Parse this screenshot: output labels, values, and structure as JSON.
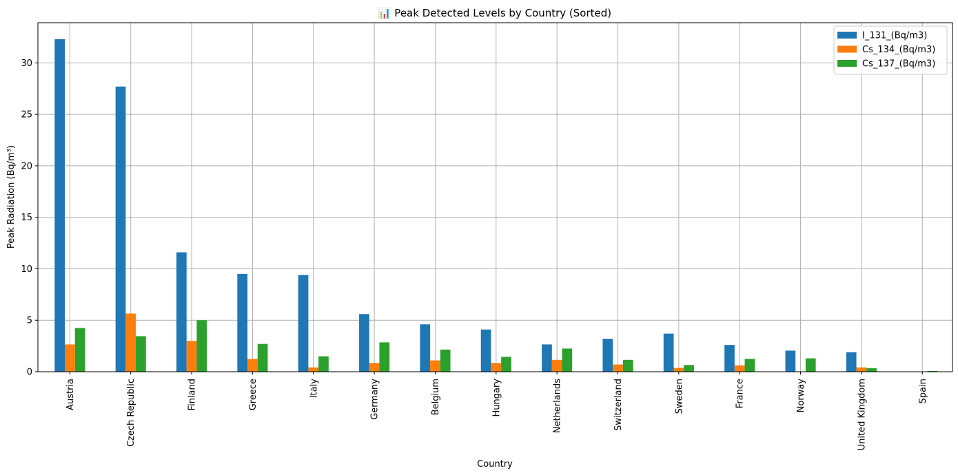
{
  "chart_data": {
    "type": "bar",
    "title": "📊 Peak Detected Levels by Country (Sorted)",
    "xlabel": "Country",
    "ylabel": "Peak Radiation (Bq/m³)",
    "ylim": [
      0,
      33.9
    ],
    "yticks": [
      0,
      5,
      10,
      15,
      20,
      25,
      30
    ],
    "grid": true,
    "legend_position": "top-right",
    "categories": [
      "Austria",
      "Czech Republic",
      "Finland",
      "Greece",
      "Italy",
      "Germany",
      "Belgium",
      "Hungary",
      "Netherlands",
      "Switzerland",
      "Sweden",
      "France",
      "Norway",
      "United Kingdom",
      "Spain"
    ],
    "series": [
      {
        "name": "I_131_(Bq/m3)",
        "color": "#1f77b4",
        "values": [
          32.3,
          27.7,
          11.6,
          9.5,
          9.4,
          5.6,
          4.6,
          4.1,
          2.65,
          3.2,
          3.7,
          2.6,
          2.05,
          1.9,
          0.02
        ]
      },
      {
        "name": "Cs_134_(Bq/m3)",
        "color": "#ff7f0e",
        "values": [
          2.65,
          5.65,
          3.0,
          1.25,
          0.42,
          0.85,
          1.1,
          0.85,
          1.15,
          0.7,
          0.38,
          0.62,
          0.0,
          0.42,
          0.0
        ]
      },
      {
        "name": "Cs_137_(Bq/m3)",
        "color": "#2ca02c",
        "values": [
          4.25,
          3.45,
          5.0,
          2.7,
          1.5,
          2.85,
          2.15,
          1.45,
          2.25,
          1.15,
          0.65,
          1.25,
          1.3,
          0.35,
          0.07
        ]
      }
    ]
  }
}
